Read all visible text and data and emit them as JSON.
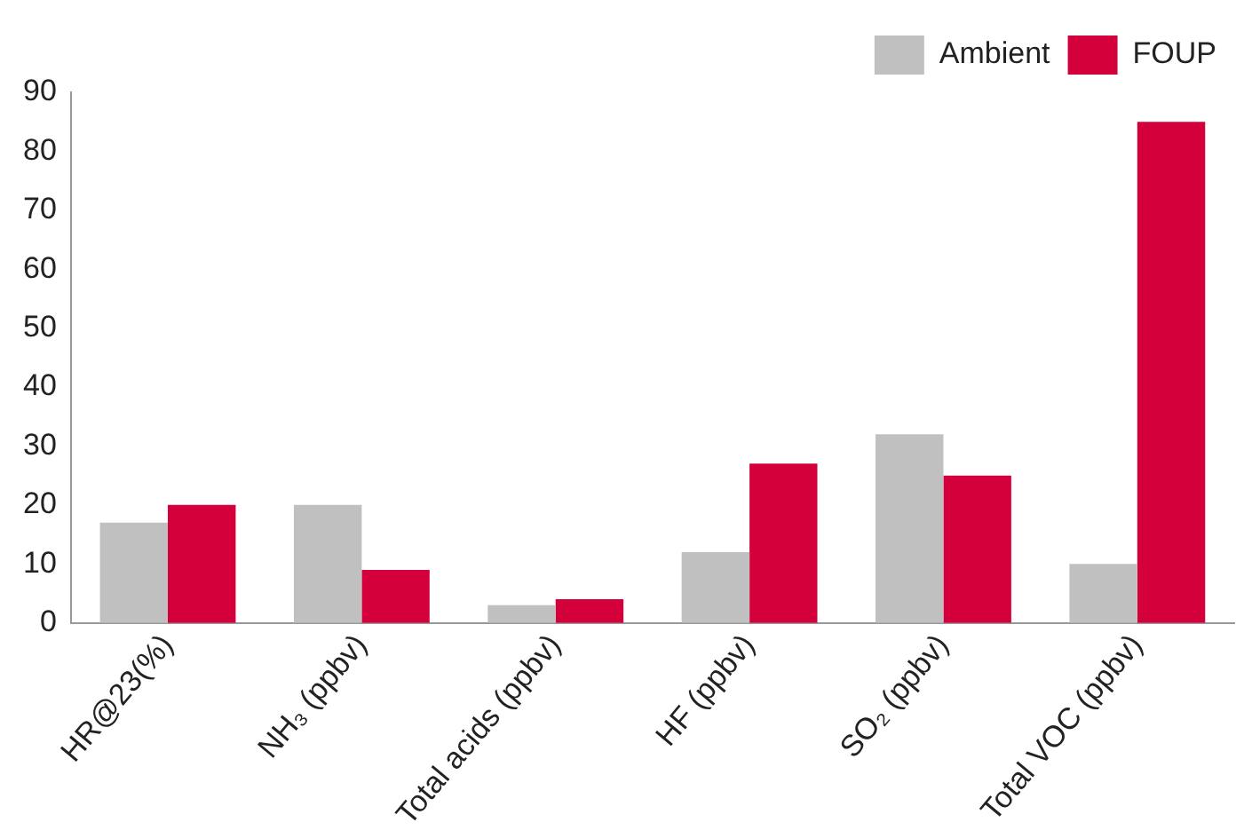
{
  "chart_data": {
    "type": "bar",
    "categories": [
      "HR@23(%)",
      "NH₃ (ppbv)",
      "Total acids (ppbv)",
      "HF (ppbv)",
      "SO₂ (ppbv)",
      "Total VOC (ppbv)"
    ],
    "series": [
      {
        "name": "Ambient",
        "color": "#c0c0c0",
        "values": [
          17,
          20,
          3,
          12,
          32,
          10
        ]
      },
      {
        "name": "FOUP",
        "color": "#d4003c",
        "values": [
          20,
          9,
          4,
          27,
          25,
          85
        ]
      }
    ],
    "ylim": [
      0,
      90
    ],
    "yticks": [
      0,
      10,
      20,
      30,
      40,
      50,
      60,
      70,
      80,
      90
    ],
    "grid": false,
    "legend": "top right"
  }
}
